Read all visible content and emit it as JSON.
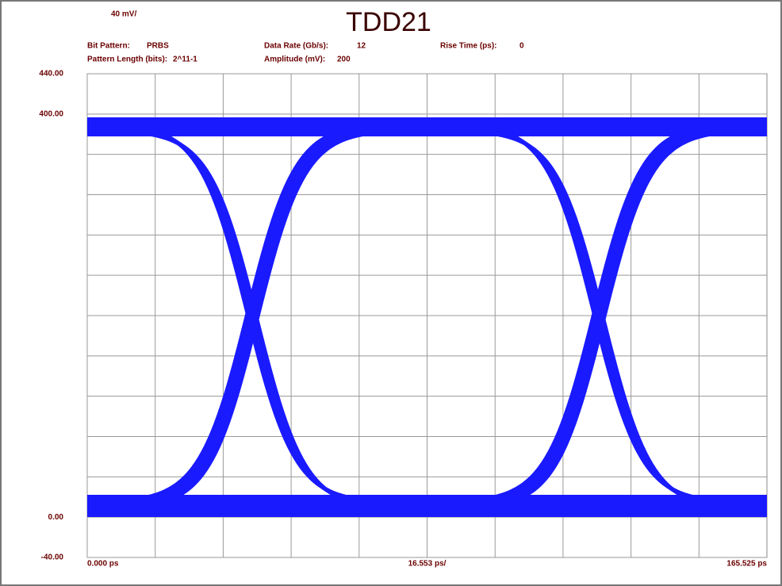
{
  "chart_data": {
    "type": "eye",
    "title": "TDD21",
    "info": [
      {
        "label": "Bit Pattern:",
        "value": "PRBS"
      },
      {
        "label": "Data Rate (Gb/s):",
        "value": "12"
      },
      {
        "label": "Rise Time (ps):",
        "value": "0"
      },
      {
        "label": "Pattern Length (bits):",
        "value": "2^11-1"
      },
      {
        "label": "Amplitude (mV):",
        "value": "200"
      }
    ],
    "ylim": [
      -40,
      440
    ],
    "yticks": [
      {
        "value": -40,
        "label": "-40.00"
      },
      {
        "value": 0,
        "label": "0.00"
      },
      {
        "value": 400,
        "label": "400.00"
      },
      {
        "value": 440,
        "label": "440.00"
      }
    ],
    "ydiv": {
      "value": 40,
      "label": "40 mV/"
    },
    "xlim": [
      0,
      165.525
    ],
    "xticks": [
      {
        "value": 0,
        "label": "0.000 ps"
      },
      {
        "value": 165.525,
        "label": "165.525 ps"
      }
    ],
    "xdiv": {
      "value": 16.553,
      "label": "16.553 ps/"
    },
    "grid": true,
    "color": "#1a1aff"
  }
}
